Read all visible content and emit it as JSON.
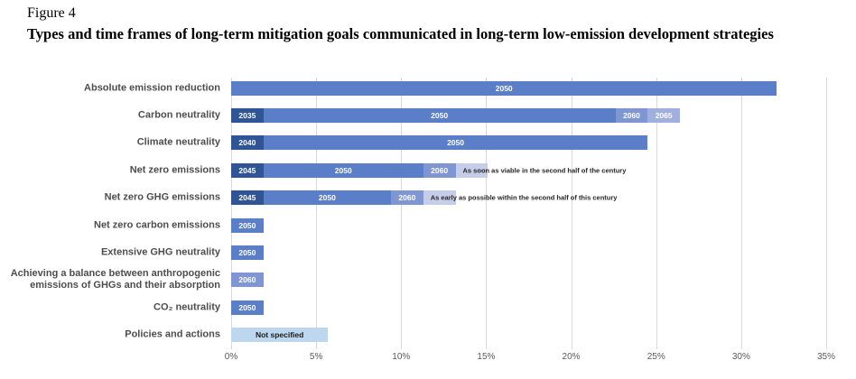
{
  "figure": {
    "label": "Figure 4",
    "title": "Types and time frames of long-term mitigation goals communicated in long-term low-emission development strategies"
  },
  "chart_data": {
    "type": "bar",
    "orientation": "horizontal",
    "stacked": true,
    "title": "Types and time frames of long-term mitigation goals communicated in long-term low-emission development strategies",
    "xlabel": "",
    "ylabel": "",
    "xlim": [
      0,
      35
    ],
    "grid": true,
    "unit": "percent",
    "x_ticks": [
      {
        "label": "0%",
        "value": 0
      },
      {
        "label": "5%",
        "value": 5
      },
      {
        "label": "10%",
        "value": 10
      },
      {
        "label": "15%",
        "value": 15
      },
      {
        "label": "20%",
        "value": 20
      },
      {
        "label": "25%",
        "value": 25
      },
      {
        "label": "30%",
        "value": 30
      },
      {
        "label": "35%",
        "value": 35
      }
    ],
    "colors": {
      "dark": "#2F5597",
      "mid": "#5B7EC9",
      "light": "#8096D3",
      "lighter": "#A0AFDE",
      "pale": "#C5CDE8",
      "notspec": "#BDD7EE"
    },
    "categories": [
      "Absolute emission reduction",
      "Carbon neutrality",
      "Climate neutrality",
      "Net zero emissions",
      "Net zero GHG emissions",
      "Net zero carbon emissions",
      "Extensive GHG neutrality",
      "Achieving a balance between anthropogenic emissions of GHGs and their absorption",
      "CO₂ neutrality",
      "Policies and actions"
    ],
    "rows": [
      {
        "category": "Absolute emission reduction",
        "segments": [
          {
            "label": "2050",
            "value": 32.1,
            "color": "mid",
            "text": "white"
          }
        ]
      },
      {
        "category": "Carbon neutrality",
        "segments": [
          {
            "label": "2035",
            "value": 1.9,
            "color": "dark",
            "text": "white"
          },
          {
            "label": "2050",
            "value": 20.7,
            "color": "mid",
            "text": "white"
          },
          {
            "label": "2060",
            "value": 1.9,
            "color": "light",
            "text": "white"
          },
          {
            "label": "2065",
            "value": 1.9,
            "color": "lighter",
            "text": "white"
          }
        ]
      },
      {
        "category": "Climate neutrality",
        "segments": [
          {
            "label": "2040",
            "value": 1.9,
            "color": "dark",
            "text": "white"
          },
          {
            "label": "2050",
            "value": 22.6,
            "color": "mid",
            "text": "white"
          }
        ]
      },
      {
        "category": "Net zero emissions",
        "segments": [
          {
            "label": "2045",
            "value": 1.9,
            "color": "dark",
            "text": "white"
          },
          {
            "label": "2050",
            "value": 9.4,
            "color": "mid",
            "text": "white"
          },
          {
            "label": "2060",
            "value": 1.9,
            "color": "light",
            "text": "white"
          },
          {
            "label": "",
            "value": 1.9,
            "color": "pale",
            "annotation": "As soon as viable in the second half of the century"
          }
        ]
      },
      {
        "category": "Net zero GHG emissions",
        "segments": [
          {
            "label": "2045",
            "value": 1.9,
            "color": "dark",
            "text": "white"
          },
          {
            "label": "2050",
            "value": 7.5,
            "color": "mid",
            "text": "white"
          },
          {
            "label": "2060",
            "value": 1.9,
            "color": "light",
            "text": "white"
          },
          {
            "label": "",
            "value": 1.9,
            "color": "pale",
            "annotation": "As early as possible within the second half of this century"
          }
        ]
      },
      {
        "category": "Net zero carbon emissions",
        "segments": [
          {
            "label": "2050",
            "value": 1.9,
            "color": "mid",
            "text": "white"
          }
        ]
      },
      {
        "category": "Extensive GHG neutrality",
        "segments": [
          {
            "label": "2050",
            "value": 1.9,
            "color": "mid",
            "text": "white"
          }
        ]
      },
      {
        "category": "Achieving a balance between anthropogenic emissions of GHGs and their absorption",
        "segments": [
          {
            "label": "2060",
            "value": 1.9,
            "color": "light",
            "text": "white"
          }
        ]
      },
      {
        "category": "CO₂ neutrality",
        "segments": [
          {
            "label": "2050",
            "value": 1.9,
            "color": "mid",
            "text": "white"
          }
        ]
      },
      {
        "category": "Policies and actions",
        "segments": [
          {
            "label": "Not specified",
            "value": 5.7,
            "color": "notspec",
            "text": "black"
          }
        ]
      }
    ]
  }
}
